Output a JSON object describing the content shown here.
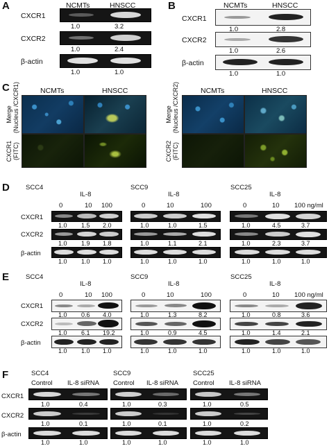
{
  "panelA": {
    "letter": "A",
    "cols": [
      "NCMTs",
      "HNSCC"
    ],
    "rows": [
      {
        "label": "CXCR1",
        "values": [
          "1.0",
          "3.2"
        ]
      },
      {
        "label": "CXCR2",
        "values": [
          "1.0",
          "2.4"
        ]
      },
      {
        "label": "β-actin",
        "values": [
          "1.0",
          "1.0"
        ]
      }
    ]
  },
  "panelB": {
    "letter": "B",
    "cols": [
      "NCMTs",
      "HNSCC"
    ],
    "rows": [
      {
        "label": "CXCR1",
        "values": [
          "1.0",
          "2.8"
        ]
      },
      {
        "label": "CXCR2",
        "values": [
          "1.0",
          "2.6"
        ]
      },
      {
        "label": "β-actin",
        "values": [
          "1.0",
          "1.0"
        ]
      }
    ]
  },
  "panelC": {
    "letter": "C",
    "cols": [
      "NCMTs",
      "HNSCC"
    ],
    "left_row1_label": "Merge\n(Nucleus /CXCR1)",
    "left_row2_label": "CXCR1\n(FITC)",
    "right_row1_label": "Merge\n(Nucleus /CXCR2)",
    "right_row2_label": "CXCR2\n(FITC)"
  },
  "panelD": {
    "letter": "D",
    "treatment": "IL-8",
    "row_labels": [
      "CXCR1",
      "CXCR2",
      "β-actin"
    ],
    "groups": [
      {
        "cell": "SCC4",
        "doses": [
          "0",
          "10",
          "100"
        ],
        "values": [
          [
            "1.0",
            "1.5",
            "2.0"
          ],
          [
            "1.0",
            "1.9",
            "1.8"
          ],
          [
            "1.0",
            "1.0",
            "1.0"
          ]
        ]
      },
      {
        "cell": "SCC9",
        "doses": [
          "0",
          "10",
          "100"
        ],
        "values": [
          [
            "1.0",
            "1.0",
            "1.5"
          ],
          [
            "1.0",
            "1.1",
            "2.1"
          ],
          [
            "1.0",
            "1.0",
            "1.0"
          ]
        ]
      },
      {
        "cell": "SCC25",
        "doses": [
          "0",
          "10",
          "100 ng/ml"
        ],
        "values": [
          [
            "1.0",
            "4.5",
            "3.7"
          ],
          [
            "1.0",
            "2.3",
            "3.7"
          ],
          [
            "1.0",
            "1.0",
            "1.0"
          ]
        ]
      }
    ]
  },
  "panelE": {
    "letter": "E",
    "treatment": "IL-8",
    "row_labels": [
      "CXCR1",
      "CXCR2",
      "β-actin"
    ],
    "groups": [
      {
        "cell": "SCC4",
        "doses": [
          "0",
          "10",
          "100"
        ],
        "values": [
          [
            "1.0",
            "0.6",
            "4.0"
          ],
          [
            "1.0",
            "6.1",
            "19.2"
          ],
          [
            "1.0",
            "1.0",
            "1.0"
          ]
        ]
      },
      {
        "cell": "SCC9",
        "doses": [
          "0",
          "10",
          "100"
        ],
        "values": [
          [
            "1.0",
            "1.3",
            "8.2"
          ],
          [
            "1.0",
            "0.9",
            "4.5"
          ],
          [
            "1.0",
            "1.0",
            "1.0"
          ]
        ]
      },
      {
        "cell": "SCC25",
        "doses": [
          "0",
          "10",
          "100 ng/ml"
        ],
        "values": [
          [
            "1.0",
            "0.8",
            "3.6"
          ],
          [
            "1.0",
            "1.4",
            "2.1"
          ],
          [
            "1.0",
            "1.0",
            "1.0"
          ]
        ]
      }
    ]
  },
  "panelF": {
    "letter": "F",
    "row_labels": [
      "CXCR1",
      "CXCR2",
      "β-actin"
    ],
    "groups": [
      {
        "cell": "SCC4",
        "conds": [
          "Control",
          "IL-8 siRNA"
        ],
        "values": [
          [
            "1.0",
            "0.4"
          ],
          [
            "1.0",
            "0.1"
          ],
          [
            "1.0",
            "1.0"
          ]
        ]
      },
      {
        "cell": "SCC9",
        "conds": [
          "Control",
          "IL-8 siRNA"
        ],
        "values": [
          [
            "1.0",
            "0.3"
          ],
          [
            "1.0",
            "0.1"
          ],
          [
            "1.0",
            "1.0"
          ]
        ]
      },
      {
        "cell": "SCC25",
        "conds": [
          "Control",
          "IL-8 siRNA"
        ],
        "values": [
          [
            "1.0",
            "0.5"
          ],
          [
            "1.0",
            "0.2"
          ],
          [
            "1.0",
            "1.0"
          ]
        ]
      }
    ]
  }
}
